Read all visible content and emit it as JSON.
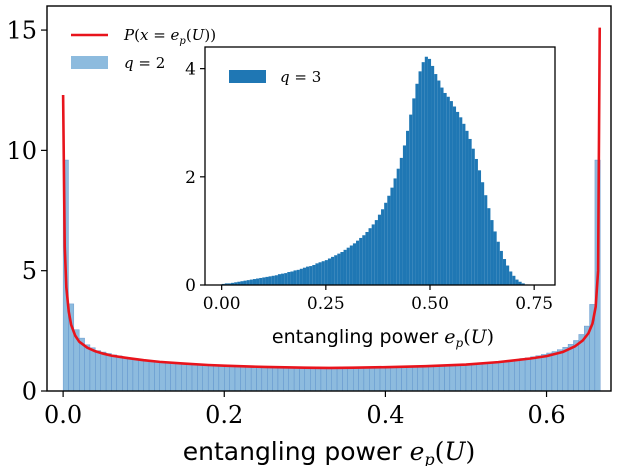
{
  "chart_data": [
    {
      "type": "bar",
      "role": "main",
      "xlabel": "entangling power e_p(U)",
      "xlim": [
        -0.02,
        0.68
      ],
      "ylim": [
        0,
        16
      ],
      "xticks": [
        0.0,
        0.2,
        0.4,
        0.6
      ],
      "xtick_labels": [
        "0.0",
        "0.2",
        "0.4",
        "0.6"
      ],
      "yticks": [
        0,
        5,
        10,
        15
      ],
      "ytick_labels": [
        "0",
        "5",
        "10",
        "15"
      ],
      "legend": {
        "placement": "top-left",
        "entries": [
          {
            "label": "P(x = e_p(U))",
            "kind": "line",
            "color": "#e8141c"
          },
          {
            "label": "q = 2",
            "kind": "patch",
            "color": "#8dbbde"
          }
        ]
      },
      "series": [
        {
          "name": "q = 2",
          "kind": "histogram",
          "color": "#8dbbde",
          "edge_color": "#4f86c6",
          "bin_range": [
            0.0,
            0.6667
          ],
          "bins": 100,
          "values": [
            9.6,
            3.62,
            2.55,
            2.2,
            1.92,
            1.8,
            1.68,
            1.62,
            1.56,
            1.5,
            1.46,
            1.41,
            1.38,
            1.35,
            1.31,
            1.29,
            1.27,
            1.24,
            1.22,
            1.2,
            1.18,
            1.17,
            1.15,
            1.14,
            1.12,
            1.11,
            1.1,
            1.09,
            1.08,
            1.07,
            1.06,
            1.05,
            1.05,
            1.04,
            1.03,
            1.02,
            1.02,
            1.01,
            1.0,
            1.0,
            1.0,
            0.99,
            0.99,
            0.98,
            0.98,
            0.98,
            0.97,
            0.97,
            0.97,
            0.96,
            0.97,
            0.96,
            0.96,
            0.96,
            0.96,
            0.97,
            0.97,
            0.97,
            0.98,
            0.98,
            0.99,
            0.99,
            1.0,
            1.0,
            1.01,
            1.02,
            1.02,
            1.03,
            1.04,
            1.05,
            1.06,
            1.07,
            1.08,
            1.09,
            1.1,
            1.12,
            1.13,
            1.15,
            1.17,
            1.19,
            1.21,
            1.23,
            1.26,
            1.28,
            1.31,
            1.35,
            1.38,
            1.42,
            1.47,
            1.52,
            1.58,
            1.64,
            1.72,
            1.82,
            1.94,
            2.1,
            2.35,
            2.7,
            3.6,
            9.6
          ]
        },
        {
          "name": "P(x = e_p(U))",
          "kind": "line",
          "color": "#e8141c",
          "x": [
            0.0,
            0.002,
            0.004,
            0.007,
            0.01,
            0.015,
            0.02,
            0.03,
            0.04,
            0.05,
            0.06,
            0.08,
            0.1,
            0.12,
            0.15,
            0.18,
            0.2,
            0.25,
            0.3,
            0.33,
            0.36,
            0.4,
            0.45,
            0.5,
            0.54,
            0.58,
            0.6,
            0.62,
            0.635,
            0.645,
            0.652,
            0.657,
            0.661,
            0.664,
            0.666
          ],
          "y": [
            12.3,
            6.0,
            4.3,
            3.3,
            2.75,
            2.3,
            2.05,
            1.8,
            1.65,
            1.55,
            1.47,
            1.37,
            1.28,
            1.21,
            1.14,
            1.08,
            1.05,
            1.0,
            0.97,
            0.96,
            0.97,
            0.99,
            1.03,
            1.1,
            1.2,
            1.35,
            1.45,
            1.62,
            1.85,
            2.1,
            2.4,
            2.8,
            3.5,
            5.0,
            15.1
          ]
        }
      ]
    },
    {
      "type": "bar",
      "role": "inset",
      "xlabel": "entangling power e_p(U)",
      "xlim": [
        -0.04,
        0.8
      ],
      "ylim": [
        0,
        4.4
      ],
      "xticks": [
        0.0,
        0.25,
        0.5,
        0.75
      ],
      "xtick_labels": [
        "0.00",
        "0.25",
        "0.50",
        "0.75"
      ],
      "yticks": [
        0,
        2,
        4
      ],
      "ytick_labels": [
        "0",
        "2",
        "4"
      ],
      "legend": {
        "placement": "top-left",
        "entries": [
          {
            "label": "q = 3",
            "kind": "patch",
            "color": "#1f77b4"
          }
        ]
      },
      "series": [
        {
          "name": "q = 3",
          "kind": "histogram",
          "color": "#1f77b4",
          "bin_range": [
            0.0,
            0.75
          ],
          "bins": 100,
          "values": [
            0.02,
            0.03,
            0.03,
            0.04,
            0.05,
            0.06,
            0.07,
            0.08,
            0.09,
            0.1,
            0.11,
            0.12,
            0.13,
            0.14,
            0.15,
            0.16,
            0.17,
            0.18,
            0.2,
            0.21,
            0.22,
            0.24,
            0.25,
            0.27,
            0.28,
            0.3,
            0.32,
            0.34,
            0.35,
            0.37,
            0.4,
            0.42,
            0.44,
            0.46,
            0.49,
            0.52,
            0.55,
            0.58,
            0.61,
            0.65,
            0.69,
            0.73,
            0.77,
            0.82,
            0.87,
            0.92,
            0.98,
            1.05,
            1.12,
            1.2,
            1.3,
            1.4,
            1.52,
            1.65,
            1.8,
            1.97,
            2.15,
            2.35,
            2.58,
            2.85,
            3.15,
            3.45,
            3.72,
            3.95,
            4.12,
            4.22,
            4.18,
            4.05,
            3.9,
            3.78,
            3.65,
            3.55,
            3.48,
            3.4,
            3.3,
            3.2,
            3.1,
            2.98,
            2.85,
            2.7,
            2.52,
            2.33,
            2.12,
            1.9,
            1.66,
            1.42,
            1.2,
            0.99,
            0.8,
            0.63,
            0.48,
            0.36,
            0.25,
            0.17,
            0.1,
            0.06,
            0.03,
            0.01,
            0.005,
            0.0
          ]
        }
      ]
    }
  ]
}
